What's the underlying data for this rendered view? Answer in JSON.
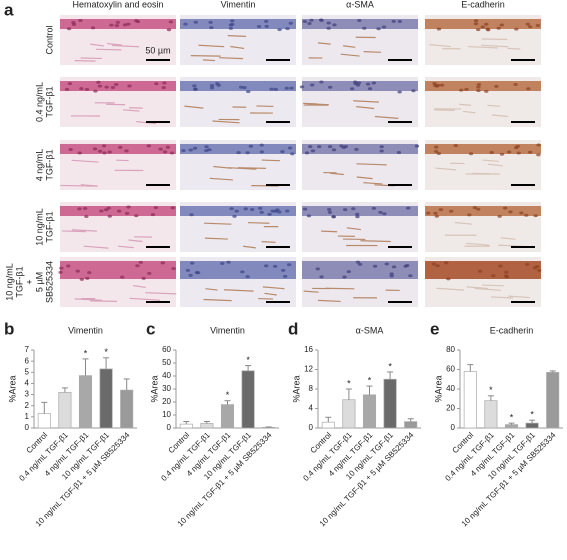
{
  "panel_a": {
    "label": "a",
    "columns": [
      "Hematoxylin and eosin",
      "Vimentin",
      "α-SMA",
      "E-cadherin"
    ],
    "rows": [
      [
        "Control"
      ],
      [
        "0.4 ng/mL",
        "TGF-β1"
      ],
      [
        "4 ng/mL",
        "TGF-β1"
      ],
      [
        "10 ng/mL",
        "TGF-β1"
      ],
      [
        "10 ng/mL",
        "TGF-β1",
        "+",
        "5 µM",
        "SB525334"
      ]
    ],
    "scale_bar": "50 µm"
  },
  "chart_data": [
    {
      "type": "bar",
      "panel": "b",
      "title": "Vimentin",
      "y_label": "%Area",
      "categories": [
        "Control",
        "0.4 ng/mL TGF-β1",
        "4 ng/mL TGF-β1",
        "10 ng/mL TGF-β1",
        "10 ng/mL TGF-β1 + 5 µM SB525334"
      ],
      "values": [
        1.3,
        3.2,
        4.7,
        5.3,
        3.4
      ],
      "errors": [
        1.0,
        0.4,
        1.5,
        1.0,
        1.0
      ],
      "colors": [
        "#ffffff",
        "#dcdcdc",
        "#a8a8a8",
        "#6a6a6a",
        "#9a9a9a"
      ],
      "ylim": [
        0,
        7
      ],
      "yticks": [
        0,
        1,
        2,
        3,
        4,
        5,
        6,
        7
      ],
      "significant": [
        false,
        false,
        true,
        true,
        false
      ],
      "significance_label": "*"
    },
    {
      "type": "bar",
      "panel": "c",
      "title": "Vimentin",
      "y_label": "%Area",
      "categories": [
        "Control",
        "0.4 ng/mL TGF-β1",
        "4 ng/mL TGF-β1",
        "10 ng/mL TGF-β1",
        "10 ng/mL TGF-β1 + 5 µM SB525334"
      ],
      "values": [
        3,
        3.5,
        18,
        44,
        0.5
      ],
      "errors": [
        2,
        1.5,
        3,
        4,
        0.3
      ],
      "colors": [
        "#ffffff",
        "#dcdcdc",
        "#a8a8a8",
        "#6a6a6a",
        "#9a9a9a"
      ],
      "ylim": [
        0,
        60
      ],
      "yticks": [
        0,
        10,
        20,
        30,
        40,
        50,
        60
      ],
      "significant": [
        false,
        false,
        true,
        true,
        false
      ],
      "significance_label": "*"
    },
    {
      "type": "bar",
      "panel": "d",
      "title": "α-SMA",
      "y_label": "%Area",
      "categories": [
        "Control",
        "0.4 ng/mL TGF-β1",
        "4 ng/mL TGF-β1",
        "10 ng/mL TGF-β1",
        "10 ng/mL TGF-β1 + 5 µM SB525334"
      ],
      "values": [
        1.2,
        5.8,
        6.8,
        10,
        1.3
      ],
      "errors": [
        1.0,
        2.2,
        1.8,
        1.5,
        0.6
      ],
      "colors": [
        "#ffffff",
        "#dcdcdc",
        "#a8a8a8",
        "#6a6a6a",
        "#9a9a9a"
      ],
      "ylim": [
        0,
        16
      ],
      "yticks": [
        0,
        4,
        8,
        12,
        16
      ],
      "significant": [
        false,
        true,
        true,
        true,
        false
      ],
      "significance_label": "*"
    },
    {
      "type": "bar",
      "panel": "e",
      "title": "E-cadherin",
      "y_label": "%Area",
      "categories": [
        "Control",
        "0.4 ng/mL TGF-β1",
        "4 ng/mL TGF-β1",
        "10 ng/mL TGF-β1",
        "10 ng/mL TGF-β1 + 5 µM SB525334"
      ],
      "values": [
        58,
        28,
        3.5,
        5,
        57
      ],
      "errors": [
        7,
        5,
        1.5,
        3,
        1.5
      ],
      "colors": [
        "#ffffff",
        "#dcdcdc",
        "#a8a8a8",
        "#6a6a6a",
        "#9a9a9a"
      ],
      "ylim": [
        0,
        80
      ],
      "yticks": [
        0,
        20,
        40,
        60,
        80
      ],
      "significant": [
        false,
        true,
        true,
        true,
        false
      ],
      "significance_label": "*"
    }
  ]
}
